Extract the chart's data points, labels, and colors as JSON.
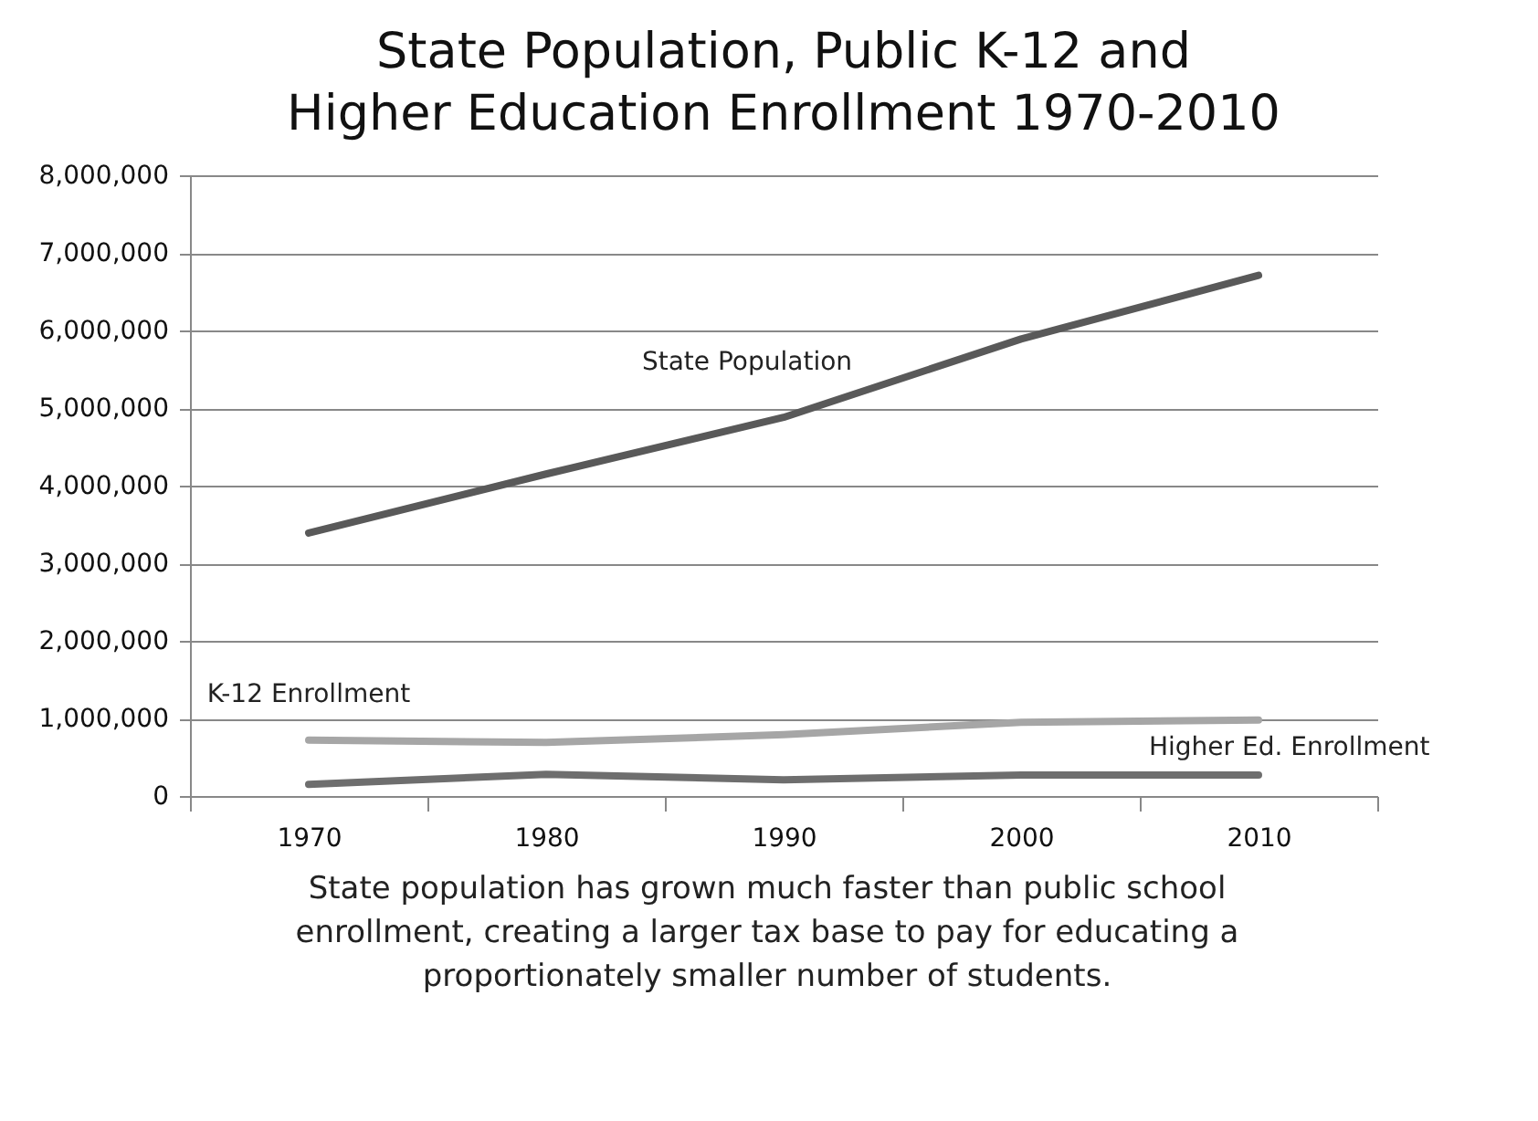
{
  "chart_data": {
    "type": "line",
    "title": "State Population, Public K-12 and Higher Education Enrollment 1970-2010",
    "categories": [
      "1970",
      "1980",
      "1990",
      "2000",
      "2010"
    ],
    "series": [
      {
        "name": "State Population",
        "color": "#595959",
        "values": [
          3390000,
          4150000,
          4880000,
          5890000,
          6710000
        ]
      },
      {
        "name": "K-12 Enrollment",
        "color": "#a6a6a6",
        "values": [
          720000,
          690000,
          790000,
          950000,
          980000
        ]
      },
      {
        "name": "Higher Ed. Enrollment",
        "color": "#6e6e6e",
        "values": [
          150000,
          280000,
          210000,
          270000,
          270000
        ]
      }
    ],
    "ylim": [
      0,
      8000000
    ],
    "yticks": [
      0,
      {
        "value": 1000000,
        "label": "1,000,000"
      },
      {
        "value": 2000000,
        "label": "2,000,000"
      },
      {
        "value": 3000000,
        "label": "3,000,000"
      },
      {
        "value": 4000000,
        "label": "4,000,000"
      },
      {
        "value": 5000000,
        "label": "5,000,000"
      },
      {
        "value": 6000000,
        "label": "6,000,000"
      },
      {
        "value": 7000000,
        "label": "7,000,000"
      },
      {
        "value": 8000000,
        "label": "8,000,000"
      }
    ],
    "grid": "y",
    "legend": false,
    "marker": "none",
    "line_style": "solid",
    "annotations": [
      "State population has grown much faster than public school enrollment, creating a larger tax base to pay for educating a proportionately smaller number of students."
    ]
  }
}
